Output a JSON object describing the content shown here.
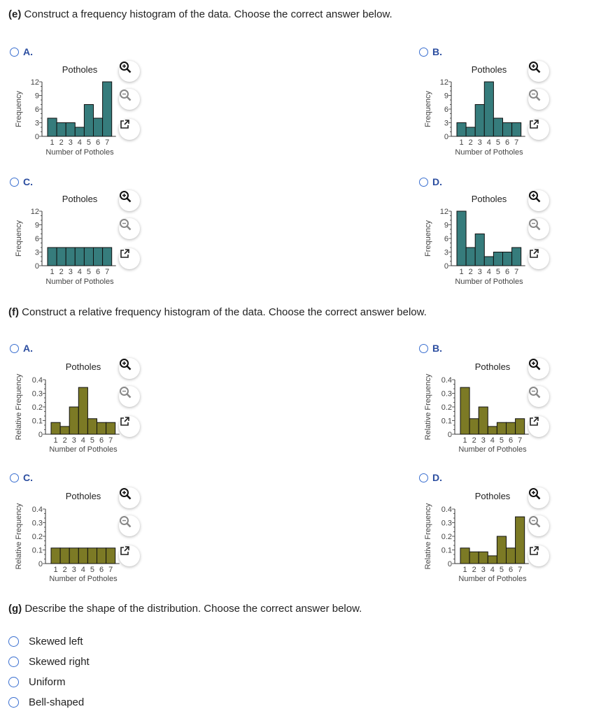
{
  "part_e": {
    "label": "(e)",
    "question": "Construct a frequency histogram of the data. Choose the correct answer below."
  },
  "part_f": {
    "label": "(f)",
    "question": "Construct a relative frequency histogram of the data. Choose the correct answer below."
  },
  "part_g": {
    "label": "(g)",
    "question": "Describe the shape of the distribution. Choose the correct answer below.",
    "options": [
      "Skewed left",
      "Skewed right",
      "Uniform",
      "Bell-shaped"
    ]
  },
  "colors": {
    "frequency_bar": "#367c7c",
    "relative_bar": "#7c7a25",
    "radio": "#3a6fd0",
    "option_letter": "#2c4ea0"
  },
  "icons": [
    "zoom-in-icon",
    "zoom-out-icon",
    "pop-out-icon"
  ],
  "chart_data": [
    {
      "id": "e-A",
      "option": "A.",
      "type": "bar",
      "title": "Potholes",
      "xlabel": "Number of Potholes",
      "ylabel": "Frequency",
      "categories": [
        "1",
        "2",
        "3",
        "4",
        "5",
        "6",
        "7"
      ],
      "values": [
        4,
        3,
        3,
        2,
        7,
        4,
        12
      ],
      "yticks": [
        "0",
        "3",
        "6",
        "9",
        "12"
      ],
      "ylim": [
        0,
        12
      ]
    },
    {
      "id": "e-B",
      "option": "B.",
      "type": "bar",
      "title": "Potholes",
      "xlabel": "Number of Potholes",
      "ylabel": "Frequency",
      "categories": [
        "1",
        "2",
        "3",
        "4",
        "5",
        "6",
        "7"
      ],
      "values": [
        3,
        2,
        7,
        12,
        4,
        3,
        3
      ],
      "yticks": [
        "0",
        "3",
        "6",
        "9",
        "12"
      ],
      "ylim": [
        0,
        12
      ]
    },
    {
      "id": "e-C",
      "option": "C.",
      "type": "bar",
      "title": "Potholes",
      "xlabel": "Number of Potholes",
      "ylabel": "Frequency",
      "categories": [
        "1",
        "2",
        "3",
        "4",
        "5",
        "6",
        "7"
      ],
      "values": [
        4,
        4,
        4,
        4,
        4,
        4,
        4
      ],
      "yticks": [
        "0",
        "3",
        "6",
        "9",
        "12"
      ],
      "ylim": [
        0,
        12
      ]
    },
    {
      "id": "e-D",
      "option": "D.",
      "type": "bar",
      "title": "Potholes",
      "xlabel": "Number of Potholes",
      "ylabel": "Frequency",
      "categories": [
        "1",
        "2",
        "3",
        "4",
        "5",
        "6",
        "7"
      ],
      "values": [
        12,
        4,
        7,
        2,
        3,
        3,
        4
      ],
      "yticks": [
        "0",
        "3",
        "6",
        "9",
        "12"
      ],
      "ylim": [
        0,
        12
      ]
    },
    {
      "id": "f-A",
      "option": "A.",
      "type": "bar",
      "title": "Potholes",
      "xlabel": "Number of Potholes",
      "ylabel": "Relative Frequency",
      "categories": [
        "1",
        "2",
        "3",
        "4",
        "5",
        "6",
        "7"
      ],
      "values": [
        0.086,
        0.057,
        0.2,
        0.343,
        0.114,
        0.086,
        0.086
      ],
      "yticks": [
        "0",
        "0.1",
        "0.2",
        "0.3",
        "0.4"
      ],
      "ylim": [
        0,
        0.4
      ]
    },
    {
      "id": "f-B",
      "option": "B.",
      "type": "bar",
      "title": "Potholes",
      "xlabel": "Number of Potholes",
      "ylabel": "Relative Frequency",
      "categories": [
        "1",
        "2",
        "3",
        "4",
        "5",
        "6",
        "7"
      ],
      "values": [
        0.343,
        0.114,
        0.2,
        0.057,
        0.086,
        0.086,
        0.114
      ],
      "yticks": [
        "0",
        "0.1",
        "0.2",
        "0.3",
        "0.4"
      ],
      "ylim": [
        0,
        0.4
      ]
    },
    {
      "id": "f-C",
      "option": "C.",
      "type": "bar",
      "title": "Potholes",
      "xlabel": "Number of Potholes",
      "ylabel": "Relative Frequency",
      "categories": [
        "1",
        "2",
        "3",
        "4",
        "5",
        "6",
        "7"
      ],
      "values": [
        0.114,
        0.114,
        0.114,
        0.114,
        0.114,
        0.114,
        0.114
      ],
      "yticks": [
        "0",
        "0.1",
        "0.2",
        "0.3",
        "0.4"
      ],
      "ylim": [
        0,
        0.4
      ]
    },
    {
      "id": "f-D",
      "option": "D.",
      "type": "bar",
      "title": "Potholes",
      "xlabel": "Number of Potholes",
      "ylabel": "Relative Frequency",
      "categories": [
        "1",
        "2",
        "3",
        "4",
        "5",
        "6",
        "7"
      ],
      "values": [
        0.114,
        0.086,
        0.086,
        0.057,
        0.2,
        0.114,
        0.343
      ],
      "yticks": [
        "0",
        "0.1",
        "0.2",
        "0.3",
        "0.4"
      ],
      "ylim": [
        0,
        0.4
      ]
    }
  ]
}
